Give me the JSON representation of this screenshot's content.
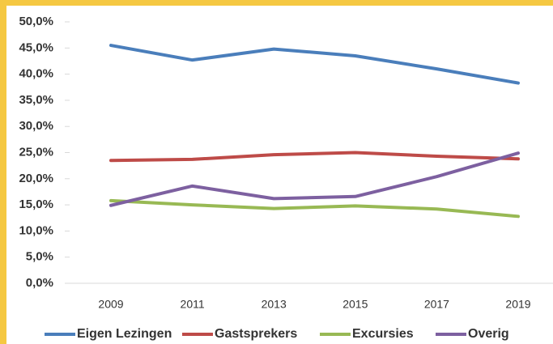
{
  "chart_data": {
    "type": "line",
    "categories": [
      "2009",
      "2011",
      "2013",
      "2015",
      "2017",
      "2019"
    ],
    "series": [
      {
        "name": "Eigen Lezingen",
        "color": "#4a7ebb",
        "values": [
          45.5,
          42.7,
          44.8,
          43.5,
          41.0,
          38.3
        ]
      },
      {
        "name": "Gastsprekers",
        "color": "#be4b48",
        "values": [
          23.5,
          23.7,
          24.6,
          25.0,
          24.3,
          23.8
        ]
      },
      {
        "name": "Excursies",
        "color": "#98b954",
        "values": [
          15.8,
          15.0,
          14.3,
          14.8,
          14.2,
          12.8
        ]
      },
      {
        "name": "Overig",
        "color": "#7d60a0",
        "values": [
          14.9,
          18.6,
          16.2,
          16.6,
          20.4,
          24.9
        ]
      }
    ],
    "ylim": [
      0,
      50
    ],
    "yticks": [
      {
        "value": 0,
        "label": "0,0%"
      },
      {
        "value": 5,
        "label": "5,0%"
      },
      {
        "value": 10,
        "label": "10,0%"
      },
      {
        "value": 15,
        "label": "15,0%"
      },
      {
        "value": 20,
        "label": "20,0%"
      },
      {
        "value": 25,
        "label": "25,0%"
      },
      {
        "value": 30,
        "label": "30,0%"
      },
      {
        "value": 35,
        "label": "35,0%"
      },
      {
        "value": 40,
        "label": "40,0%"
      },
      {
        "value": 45,
        "label": "45,0%"
      },
      {
        "value": 50,
        "label": "50,0%"
      }
    ],
    "legend": "bottom"
  }
}
